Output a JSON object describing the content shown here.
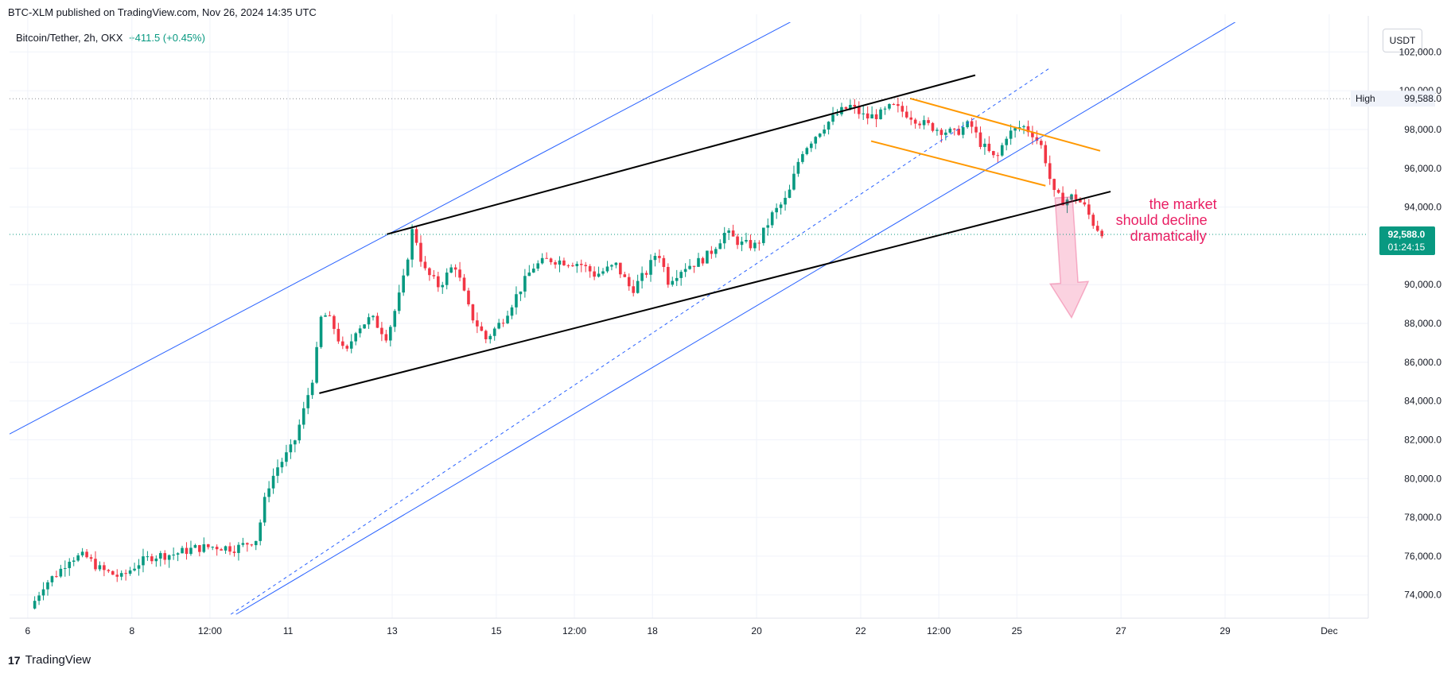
{
  "header": {
    "title": "BTC-XLM published on TradingView.com, Nov 26, 2024 14:35 UTC"
  },
  "legend": {
    "symbol": "Bitcoin/Tether, 2h, OKX",
    "change": "+411.5 (+0.45%)"
  },
  "currency_button": "USDT",
  "footer": {
    "logo": "17",
    "brand": "TradingView"
  },
  "colors": {
    "up": "#089981",
    "down": "#f23645",
    "channel": "#2962ff",
    "wedge": "#000000",
    "flag": "#ff9800",
    "annotation": "#e91e63",
    "last_price_bg": "#089981"
  },
  "chart_data": {
    "type": "candlestick",
    "x_tick_labels": [
      "6",
      "8",
      "12:00",
      "11",
      "13",
      "15",
      "12:00",
      "18",
      "20",
      "22",
      "12:00",
      "25",
      "27",
      "29",
      "Dec"
    ],
    "x_tick_days": [
      6,
      8,
      9.5,
      11,
      13,
      15,
      16.5,
      18,
      20,
      22,
      23.5,
      25,
      27,
      29,
      31
    ],
    "y_tick_labels": [
      "102,000.0",
      "100,000.0",
      "98,000.0",
      "96,000.0",
      "94,000.0",
      "90,000.0",
      "88,000.0",
      "86,000.0",
      "84,000.0",
      "82,000.0",
      "80,000.0",
      "78,000.0",
      "76,000.0",
      "74,000.0"
    ],
    "y_ticks": [
      102000,
      100000,
      98000,
      96000,
      94000,
      90000,
      88000,
      86000,
      84000,
      82000,
      80000,
      78000,
      76000,
      74000
    ],
    "xlim_days": [
      5.65,
      31.75
    ],
    "ylim": [
      72800,
      102300
    ],
    "high_marker": {
      "label": "High",
      "value": "99,588.0",
      "price": 99588
    },
    "last_price": {
      "value": "92,588.0",
      "countdown": "01:24:15",
      "price": 92588
    },
    "annotation": [
      "the market",
      "should decline",
      "dramatically"
    ],
    "path_points": [
      [
        6.05,
        73300
      ],
      [
        6.3,
        74500
      ],
      [
        6.6,
        75200
      ],
      [
        6.8,
        75900
      ],
      [
        7.1,
        76000
      ],
      [
        7.4,
        75300
      ],
      [
        7.8,
        74900
      ],
      [
        8.1,
        75600
      ],
      [
        8.4,
        76000
      ],
      [
        8.8,
        76100
      ],
      [
        9.2,
        76400
      ],
      [
        9.6,
        76500
      ],
      [
        10.0,
        76400
      ],
      [
        10.4,
        76900
      ],
      [
        10.6,
        79500
      ],
      [
        10.8,
        80600
      ],
      [
        11.1,
        81700
      ],
      [
        11.3,
        83500
      ],
      [
        11.5,
        85500
      ],
      [
        11.65,
        88600
      ],
      [
        11.85,
        88000
      ],
      [
        12.1,
        86300
      ],
      [
        12.3,
        87700
      ],
      [
        12.6,
        88300
      ],
      [
        12.9,
        87300
      ],
      [
        13.2,
        90000
      ],
      [
        13.4,
        93000
      ],
      [
        13.6,
        90800
      ],
      [
        13.9,
        89900
      ],
      [
        14.2,
        91100
      ],
      [
        14.5,
        88500
      ],
      [
        14.8,
        87200
      ],
      [
        15.1,
        88100
      ],
      [
        15.4,
        89500
      ],
      [
        15.7,
        90900
      ],
      [
        16.0,
        91300
      ],
      [
        16.3,
        91200
      ],
      [
        16.6,
        91100
      ],
      [
        16.9,
        90500
      ],
      [
        17.3,
        91000
      ],
      [
        17.6,
        89700
      ],
      [
        17.9,
        90700
      ],
      [
        18.1,
        91800
      ],
      [
        18.3,
        90200
      ],
      [
        18.6,
        90900
      ],
      [
        18.9,
        91200
      ],
      [
        19.1,
        91600
      ],
      [
        19.4,
        92700
      ],
      [
        19.7,
        92100
      ],
      [
        20.0,
        92000
      ],
      [
        20.3,
        93600
      ],
      [
        20.6,
        94500
      ],
      [
        20.85,
        96800
      ],
      [
        21.1,
        97600
      ],
      [
        21.3,
        98200
      ],
      [
        21.6,
        98900
      ],
      [
        21.8,
        99200
      ],
      [
        22.1,
        98600
      ],
      [
        22.4,
        98800
      ],
      [
        22.6,
        99200
      ],
      [
        22.9,
        98800
      ],
      [
        23.2,
        98300
      ],
      [
        23.5,
        98000
      ],
      [
        23.8,
        97800
      ],
      [
        24.1,
        98300
      ],
      [
        24.3,
        97300
      ],
      [
        24.6,
        96400
      ],
      [
        24.8,
        97700
      ],
      [
        25.1,
        98200
      ],
      [
        25.3,
        97800
      ],
      [
        25.5,
        97000
      ],
      [
        25.7,
        94700
      ],
      [
        25.9,
        94300
      ],
      [
        26.1,
        94600
      ],
      [
        26.3,
        94000
      ],
      [
        26.5,
        93000
      ],
      [
        26.7,
        92600
      ]
    ],
    "drawings": {
      "channel_upper": [
        [
          5.65,
          82300
        ],
        [
          23.8,
          108000
        ]
      ],
      "channel_lower": [
        [
          10.0,
          73000
        ],
        [
          32.0,
          108000
        ]
      ],
      "channel_mid_dashed": [
        [
          9.9,
          73000
        ],
        [
          25.65,
          101200
        ]
      ],
      "wedge_upper": [
        [
          12.9,
          92600
        ],
        [
          24.2,
          100800
        ]
      ],
      "wedge_lower": [
        [
          11.6,
          84400
        ],
        [
          26.8,
          94800
        ]
      ],
      "flag_upper": [
        [
          22.95,
          99600
        ],
        [
          26.6,
          96900
        ]
      ],
      "flag_lower": [
        [
          22.2,
          97400
        ],
        [
          25.55,
          95100
        ]
      ],
      "arrow_from": [
        25.9,
        94500
      ],
      "arrow_to": [
        26.05,
        88300
      ]
    }
  }
}
